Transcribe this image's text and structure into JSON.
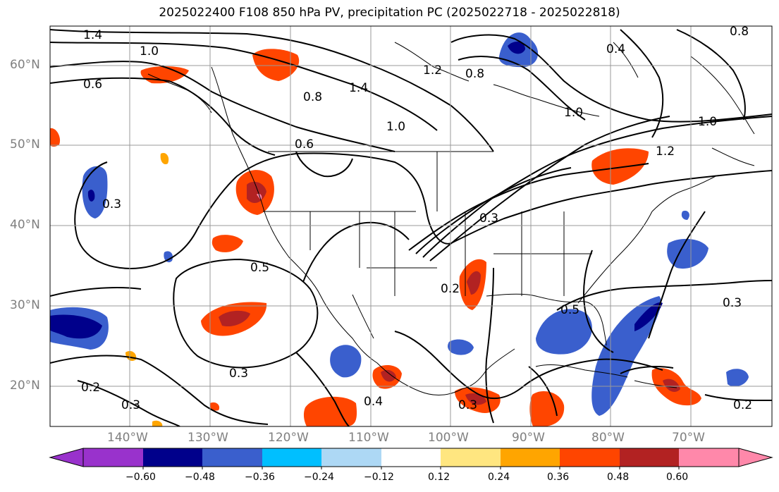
{
  "title": "2025022400 F108 850 hPa PV, precipitation PC (2025022718 - 2025022818)",
  "latitude_labels": [
    "60°N",
    "50°N",
    "40°N",
    "30°N",
    "20°N"
  ],
  "longitude_labels": [
    "140°W",
    "130°W",
    "120°W",
    "110°W",
    "100°W",
    "90°W",
    "80°W",
    "70°W"
  ],
  "contour_labels": [
    "1.4",
    "1.0",
    "0.6",
    "0.8",
    "1.4",
    "1.2",
    "0.8",
    "1.0",
    "0.6",
    "1.2",
    "1.0",
    "1.0",
    "0.8",
    "0.4",
    "0.3",
    "0.5",
    "0.3",
    "0.2",
    "0.3",
    "0.4",
    "0.3",
    "0.2",
    "0.3",
    "0.5",
    "0.3",
    "0.2"
  ],
  "colorbar": {
    "tick_labels": [
      "−0.60",
      "−0.48",
      "−0.36",
      "−0.24",
      "−0.12",
      "0.12",
      "0.24",
      "0.36",
      "0.48",
      "0.60"
    ],
    "colors": [
      "#9932cc",
      "#00008b",
      "#3a5fcd",
      "#00bfff",
      "#add8f5",
      "#ffffff",
      "#ffe680",
      "#ffa500",
      "#ff4500",
      "#b22222",
      "#ff88aa"
    ]
  },
  "map_extent": {
    "lon_min": -150,
    "lon_max": -60,
    "lat_min": 15,
    "lat_max": 65
  },
  "grid": true
}
